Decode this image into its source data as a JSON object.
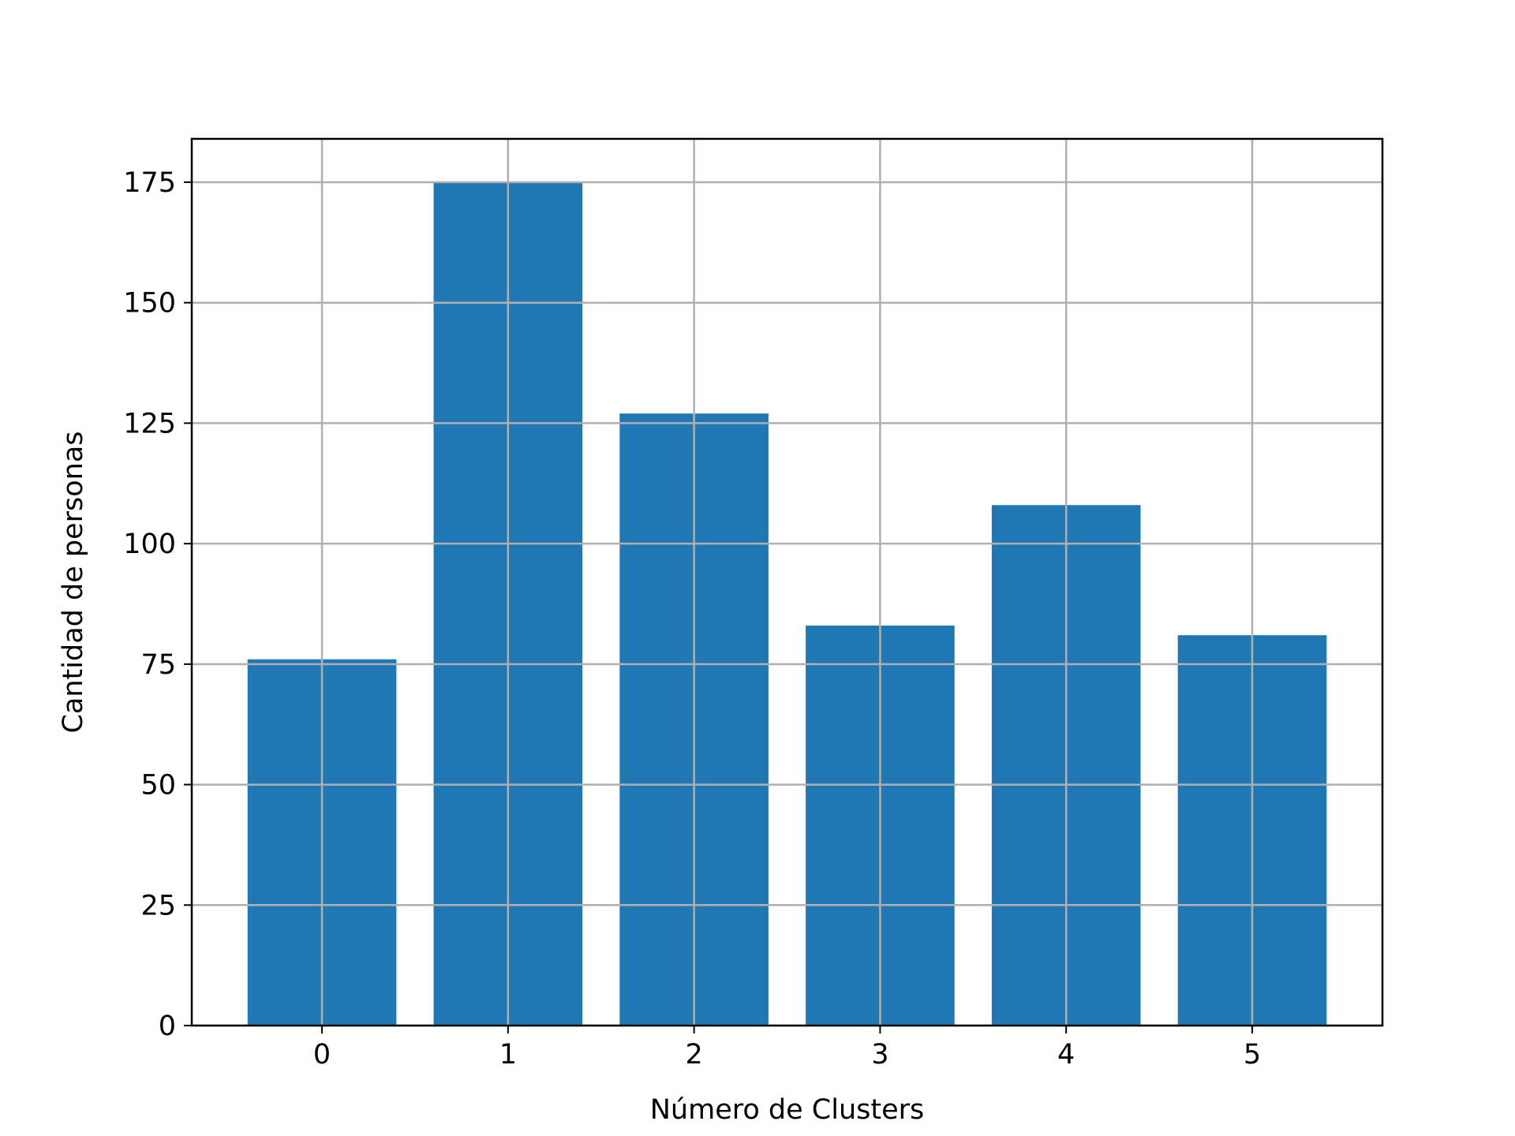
{
  "chart_data": {
    "type": "bar",
    "categories": [
      "0",
      "1",
      "2",
      "3",
      "4",
      "5"
    ],
    "values": [
      76,
      175,
      127,
      83,
      108,
      81
    ],
    "title": "",
    "xlabel": "Número de Clusters",
    "ylabel": "Cantidad de personas",
    "ylim": [
      0,
      184
    ],
    "xlim": [
      -0.7,
      5.7
    ],
    "yticks": [
      0,
      25,
      50,
      75,
      100,
      125,
      150,
      175
    ],
    "grid": true,
    "bar_color": "#1f77b4",
    "grid_color": "#b0b0b0"
  }
}
